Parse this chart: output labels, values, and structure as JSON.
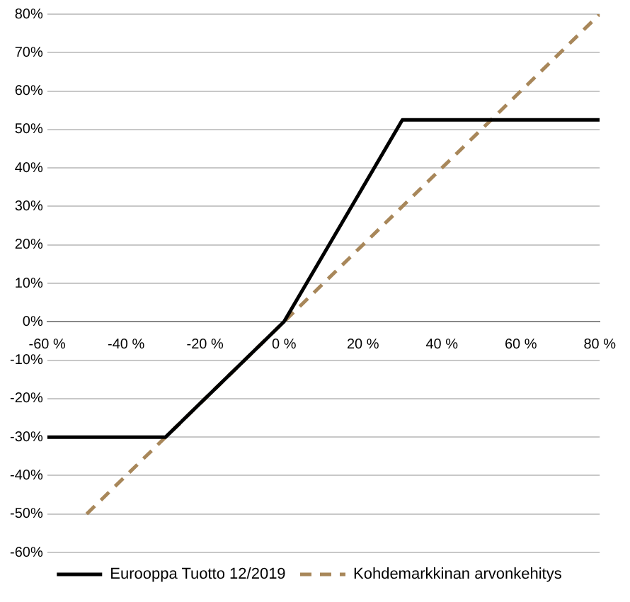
{
  "chart_data": {
    "type": "line",
    "xlim": [
      -60,
      80
    ],
    "ylim": [
      -60,
      80
    ],
    "xticks": [
      {
        "value": -60,
        "label": "-60 %"
      },
      {
        "value": -40,
        "label": "-40 %"
      },
      {
        "value": -20,
        "label": "-20 %"
      },
      {
        "value": 0,
        "label": "0 %"
      },
      {
        "value": 20,
        "label": "20 %"
      },
      {
        "value": 40,
        "label": "40 %"
      },
      {
        "value": 60,
        "label": "60 %"
      },
      {
        "value": 80,
        "label": "80 %"
      }
    ],
    "yticks": [
      {
        "value": -60,
        "label": "-60%"
      },
      {
        "value": -50,
        "label": "-50%"
      },
      {
        "value": -40,
        "label": "-40%"
      },
      {
        "value": -30,
        "label": "-30%"
      },
      {
        "value": -20,
        "label": "-20%"
      },
      {
        "value": -10,
        "label": "-10%"
      },
      {
        "value": 0,
        "label": "0%"
      },
      {
        "value": 10,
        "label": "10%"
      },
      {
        "value": 20,
        "label": "20%"
      },
      {
        "value": 30,
        "label": "30%"
      },
      {
        "value": 40,
        "label": "40%"
      },
      {
        "value": 50,
        "label": "50%"
      },
      {
        "value": 60,
        "label": "60%"
      },
      {
        "value": 70,
        "label": "70%"
      },
      {
        "value": 80,
        "label": "80%"
      }
    ],
    "grid": "y",
    "legend": "bottom",
    "marker": "none",
    "series": [
      {
        "name": "Eurooppa Tuotto 12/2019",
        "color": "#000000",
        "x": [
          -60,
          -30,
          0,
          30,
          80
        ],
        "values": [
          -30,
          -30,
          0,
          52.5,
          52.5
        ],
        "line_style": "solid"
      },
      {
        "name": "Kohdemarkkinan arvonkehitys",
        "color": "#a8875a",
        "x": [
          -50,
          80
        ],
        "values": [
          -50,
          80
        ],
        "line_style": "dashed"
      }
    ]
  }
}
